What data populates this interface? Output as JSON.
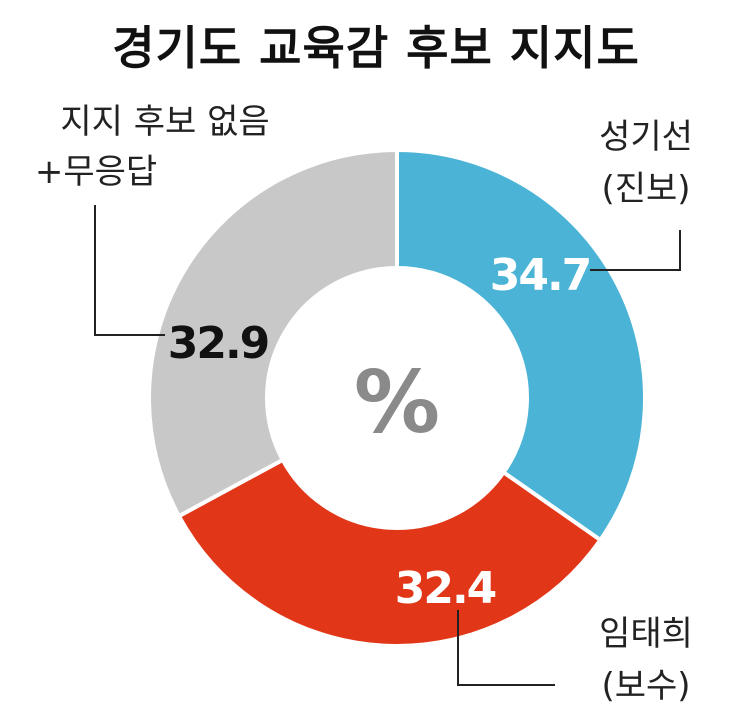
{
  "title": "경기도 교육감 후보 지지도",
  "center_label": "%",
  "chart_data": {
    "type": "pie",
    "title": "경기도 교육감 후보 지지도",
    "unit": "%",
    "slices": [
      {
        "label_line1": "성기선",
        "label_line2": "(진보)",
        "value": 34.7,
        "value_label": "34.7",
        "color": "#4ab3d6",
        "value_color": "#ffffff"
      },
      {
        "label_line1": "임태희",
        "label_line2": "(보수)",
        "value": 32.4,
        "value_label": "32.4",
        "color": "#e23618",
        "value_color": "#ffffff"
      },
      {
        "label_line1": "지지 후보 없음",
        "label_line2": "+무응답",
        "value": 32.9,
        "value_label": "32.9",
        "color": "#c8c8c8",
        "value_color": "#111111"
      }
    ]
  }
}
